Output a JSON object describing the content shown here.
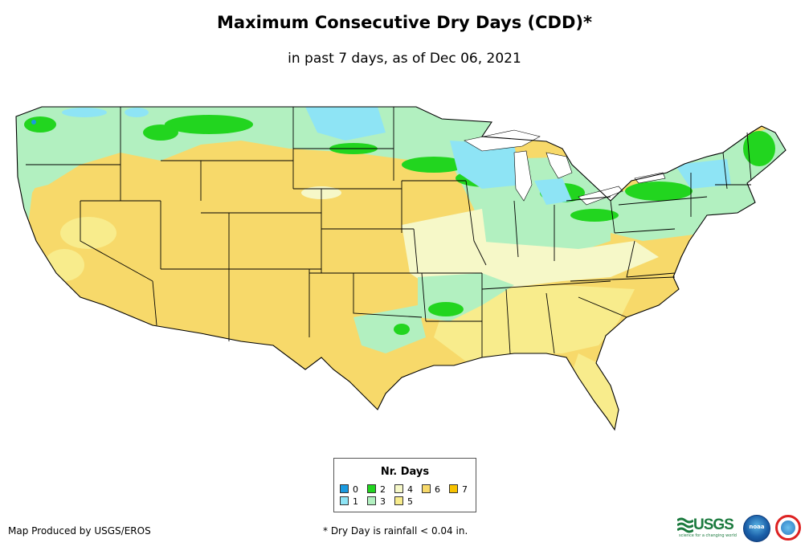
{
  "header": {
    "title": "Maximum Consecutive Dry Days (CDD)*",
    "subtitle": "in past 7 days, as of Dec 06, 2021"
  },
  "palette": {
    "days_0": "#1a9ae0",
    "days_1": "#8ee4f5",
    "days_2": "#22d51f",
    "days_3": "#b2f0c0",
    "days_4": "#f6f8c8",
    "days_5": "#f8ec8c",
    "days_6": "#f7d96a",
    "days_7": "#f7c200",
    "water": "#ffffff",
    "border": "#000000"
  },
  "legend": {
    "title": "Nr. Days",
    "items": [
      {
        "label": "0",
        "color": "#1a9ae0"
      },
      {
        "label": "1",
        "color": "#8ee4f5"
      },
      {
        "label": "2",
        "color": "#22d51f"
      },
      {
        "label": "3",
        "color": "#b2f0c0"
      },
      {
        "label": "4",
        "color": "#f6f8c8"
      },
      {
        "label": "5",
        "color": "#f8ec8c"
      },
      {
        "label": "6",
        "color": "#f7d96a"
      },
      {
        "label": "7",
        "color": "#f7c200"
      }
    ]
  },
  "footer": {
    "credit": "Map Produced by USGS/EROS",
    "note": "* Dry Day is rainfall < 0.04 in."
  },
  "logos": [
    {
      "name": "usgs",
      "text": "USGS",
      "tagline": "science for a changing world"
    },
    {
      "name": "noaa",
      "text": "noaa"
    },
    {
      "name": "nws",
      "text": "National Weather Service"
    }
  ]
}
